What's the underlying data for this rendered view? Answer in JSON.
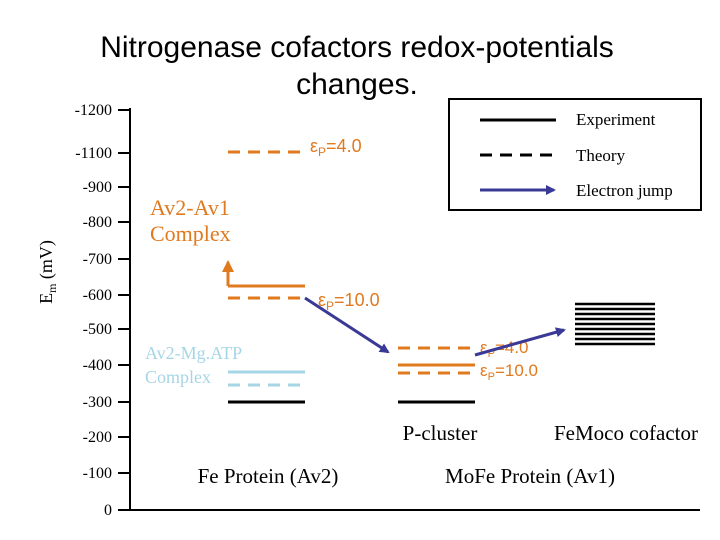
{
  "title": {
    "line1": "Nitrogenase cofactors redox-potentials",
    "line2": "changes."
  },
  "y_axis": {
    "label": {
      "main": "E",
      "sub": "m",
      "rest": " (mV)"
    },
    "ticks": [
      "-1200",
      "-1100",
      "-900",
      "-800",
      "-700",
      "-600",
      "-500",
      "-400",
      "-300",
      "-200",
      "-100",
      "0"
    ]
  },
  "legend": {
    "experiment": "Experiment",
    "theory": "Theory",
    "electron_jump": "Electron jump"
  },
  "labels": {
    "complex_av2_av1": {
      "line1": "Av2-Av1",
      "line2": "Complex"
    },
    "complex_av2_mgatp": {
      "line1": "Av2-Mg.ATP",
      "line2": "Complex"
    },
    "fe_protein": "Fe Protein (Av2)",
    "mofe_protein": "MoFe Protein (Av1)",
    "p_cluster": "P-cluster",
    "femoco": "FeMoco cofactor"
  },
  "epsilon_labels": {
    "av2_high": {
      "symbol": "ε",
      "sub": "P",
      "rest": "=4.0"
    },
    "av2_low": {
      "symbol": "ε",
      "sub": "P",
      "rest": "=10.0"
    },
    "av1_high": {
      "symbol": "ε",
      "sub": "P",
      "rest": "=4.0"
    },
    "av1_low": {
      "symbol": "ε",
      "sub": "P",
      "rest": "=10.0"
    }
  }
}
